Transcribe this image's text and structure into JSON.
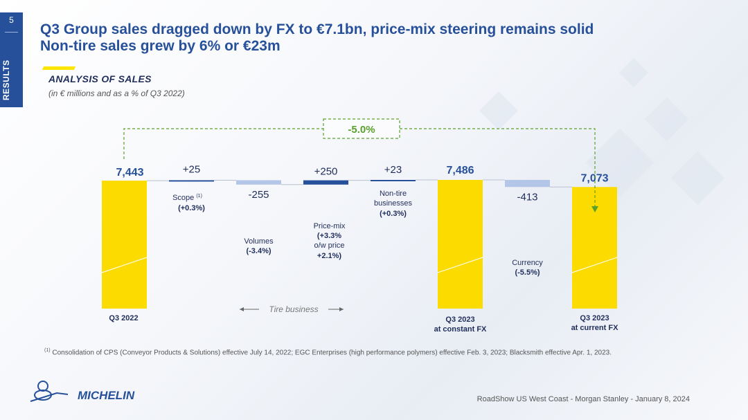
{
  "page": {
    "number": "5",
    "section": "RESULTS",
    "title_line1": "Q3 Group sales dragged down by FX to €7.1bn, price-mix steering remains solid",
    "title_line2": "Non-tire sales grew by 6% or €23m",
    "subtitle": "ANALYSIS OF SALES",
    "subnote": "(in € millions and as a % of Q3 2022)",
    "footnote_marker": "(1)",
    "footnote": "Consolidation of CPS (Conveyor Products & Solutions) effective July 14, 2022; EGC Enterprises (high performance polymers) effective Feb. 3, 2023; Blacksmith effective Apr. 1, 2023.",
    "logo_text": "MICHELIN",
    "footer": "RoadShow US West Coast - Morgan Stanley - January 8, 2024"
  },
  "colors": {
    "yellow": "#fcdb00",
    "dark_blue": "#27509b",
    "light_blue": "#b3c6e7",
    "green": "#5aa12b",
    "text_blue": "#27509b"
  },
  "chart_data": {
    "type": "bar",
    "subtype": "waterfall",
    "bars": [
      {
        "kind": "total",
        "value": 7443,
        "label": "7,443",
        "category": "Q3 2022"
      },
      {
        "kind": "increase",
        "value": 25,
        "label": "+25",
        "desc": "Scope",
        "sup": "(1)",
        "pct": "(+0.3%)"
      },
      {
        "kind": "decrease",
        "value": -255,
        "label": "-255",
        "desc": "Volumes",
        "pct": "(-3.4%)"
      },
      {
        "kind": "increase",
        "value": 250,
        "label": "+250",
        "desc": "Price-mix",
        "pct": "(+3.3%",
        "note": "o/w price",
        "note_pct": "+2.1%)"
      },
      {
        "kind": "increase",
        "value": 23,
        "label": "+23",
        "desc": "Non-tire businesses",
        "desc_line1": "Non-tire",
        "desc_line2": "businesses",
        "pct": "(+0.3%)"
      },
      {
        "kind": "total",
        "value": 7486,
        "label": "7,486",
        "category_line1": "Q3 2023",
        "category_line2": "at constant FX"
      },
      {
        "kind": "decrease",
        "value": -413,
        "label": "-413",
        "desc": "Currency",
        "pct": "(-5.5%)"
      },
      {
        "kind": "total",
        "value": 7073,
        "label": "7,073",
        "category_line1": "Q3 2023",
        "category_line2": "at current FX"
      }
    ],
    "bracket_label": "-5.0%",
    "tire_business_label": "Tire business"
  }
}
